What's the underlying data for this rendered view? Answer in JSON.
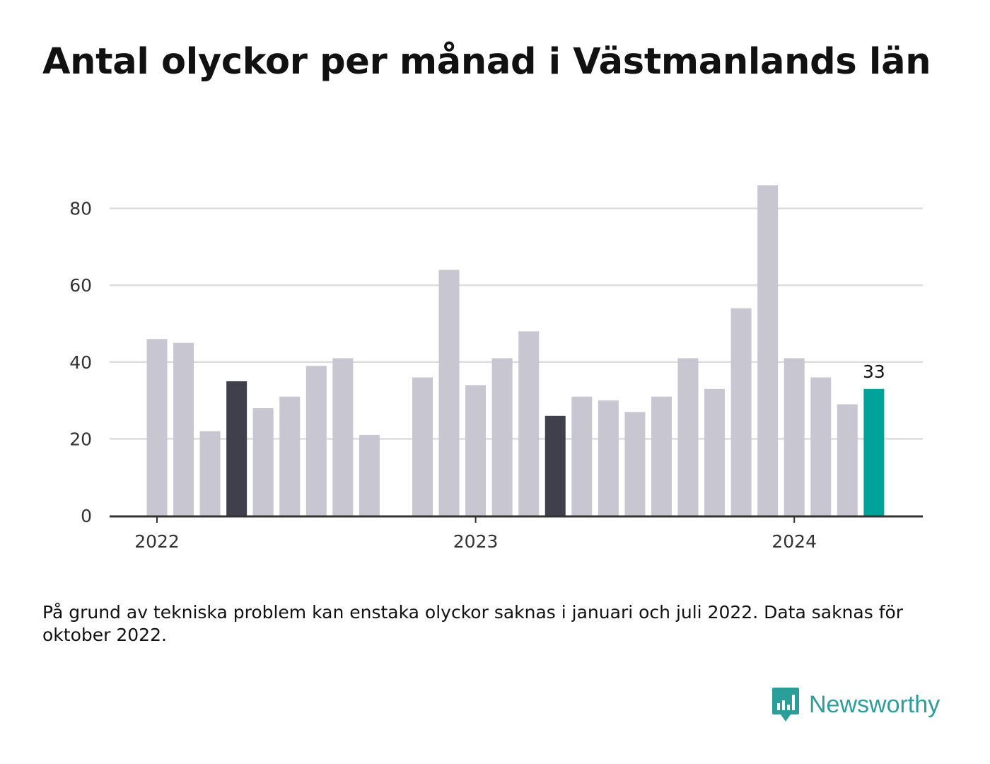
{
  "title": "Antal olyckor per månad i Västmanlands län",
  "footnote": "På grund av tekniska problem kan enstaka olyckor saknas i januari och juli 2022. Data saknas för oktober 2022.",
  "brand": {
    "name": "Newsworthy",
    "icon": "newsworthy-logo-icon"
  },
  "colors": {
    "bar_default": "#c8c7d1",
    "bar_highlight": "#403f4c",
    "bar_latest": "#00a39a",
    "grid": "#dddddd",
    "axis": "#333333",
    "brand": "#2c9e9a"
  },
  "chart_data": {
    "type": "bar",
    "title": "Antal olyckor per månad i Västmanlands län",
    "xlabel": "",
    "ylabel": "",
    "ylim": [
      0,
      90
    ],
    "yticks": [
      0,
      20,
      40,
      60,
      80
    ],
    "grid": true,
    "xtick_labels": [
      {
        "label": "2022",
        "at": "2022-01"
      },
      {
        "label": "2023",
        "at": "2023-01"
      },
      {
        "label": "2024",
        "at": "2024-01"
      }
    ],
    "categories": [
      "2022-01",
      "2022-02",
      "2022-03",
      "2022-04",
      "2022-05",
      "2022-06",
      "2022-07",
      "2022-08",
      "2022-09",
      "2022-10",
      "2022-11",
      "2022-12",
      "2023-01",
      "2023-02",
      "2023-03",
      "2023-04",
      "2023-05",
      "2023-06",
      "2023-07",
      "2023-08",
      "2023-09",
      "2023-10",
      "2023-11",
      "2023-12",
      "2024-01",
      "2024-02",
      "2024-03",
      "2024-04"
    ],
    "values": [
      46,
      45,
      22,
      35,
      28,
      31,
      39,
      41,
      21,
      null,
      36,
      64,
      34,
      41,
      48,
      26,
      31,
      30,
      27,
      31,
      41,
      33,
      54,
      86,
      41,
      36,
      29,
      33
    ],
    "highlighted": [
      "2022-04",
      "2023-04"
    ],
    "latest": "2024-04",
    "annotations": [
      {
        "at": "2024-04",
        "text": "33"
      }
    ]
  }
}
